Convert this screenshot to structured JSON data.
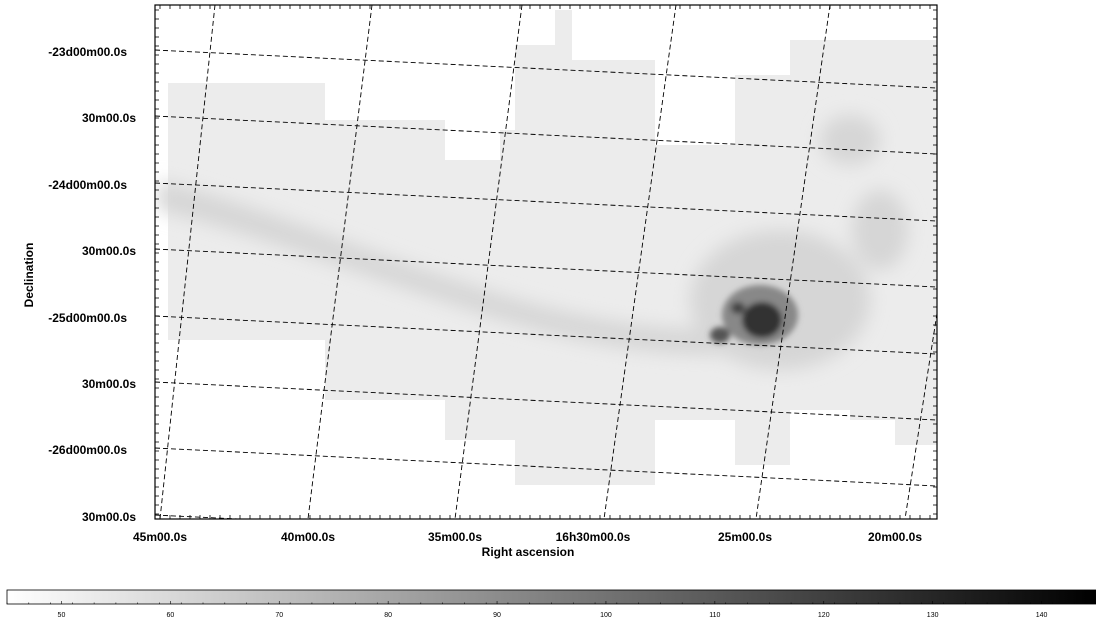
{
  "chart_data": {
    "type": "heatmap",
    "title": "",
    "xlabel": "Right ascension",
    "ylabel": "Declination",
    "x_tick_labels": [
      "45m00.0s",
      "40m00.0s",
      "35m00.0s",
      "16h30m00.0s",
      "25m00.0s",
      "20m00.0s"
    ],
    "y_tick_labels": [
      "-23d00m00.0s",
      "30m00.0s",
      "-24d00m00.0s",
      "30m00.0s",
      "-25d00m00.0s",
      "30m00.0s",
      "-26d00m00.0s",
      "30m00.0s"
    ],
    "grid": true,
    "grid_style": "dashed",
    "colormap": "gray_r",
    "colorbar": {
      "orientation": "horizontal",
      "placement": "bottom",
      "range": [
        45,
        145
      ],
      "tick_labels": [
        "50",
        "60",
        "70",
        "80",
        "90",
        "100",
        "110",
        "120",
        "130",
        "140"
      ]
    },
    "colors": {
      "low": "#ffffff",
      "high": "#000000",
      "grid": "#000000"
    }
  }
}
